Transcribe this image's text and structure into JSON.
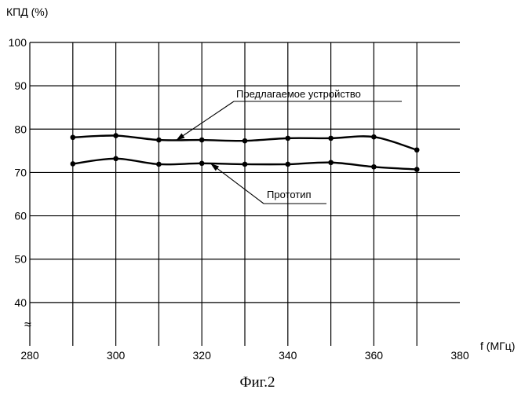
{
  "chart_data": {
    "type": "line",
    "ylabel": "КПД (%)",
    "xlabel": "f (МГц)",
    "x_ticks": [
      280,
      300,
      320,
      340,
      360,
      380
    ],
    "y_ticks": [
      40,
      50,
      60,
      70,
      80,
      90,
      100
    ],
    "xlim": [
      280,
      380
    ],
    "ylim": [
      30,
      100
    ],
    "grid": true,
    "axis_break_symbol": "≈",
    "series": [
      {
        "name": "Предлагаемое устройство",
        "x": [
          290,
          300,
          310,
          320,
          330,
          340,
          350,
          360,
          370
        ],
        "y": [
          78.1,
          78.5,
          77.5,
          77.5,
          77.3,
          77.9,
          77.9,
          78.2,
          75.2
        ]
      },
      {
        "name": "Прототип",
        "x": [
          290,
          300,
          310,
          320,
          330,
          340,
          350,
          360,
          370
        ],
        "y": [
          72.0,
          73.2,
          71.9,
          72.1,
          71.9,
          71.9,
          72.3,
          71.3,
          70.7
        ]
      }
    ],
    "annotations": [
      {
        "text": "Предлагаемое устройство",
        "points_to_series": "Предлагаемое устройство"
      },
      {
        "text": "Прототип",
        "points_to_series": "Прототип"
      }
    ]
  },
  "figure": {
    "caption": "Фиг.2"
  }
}
